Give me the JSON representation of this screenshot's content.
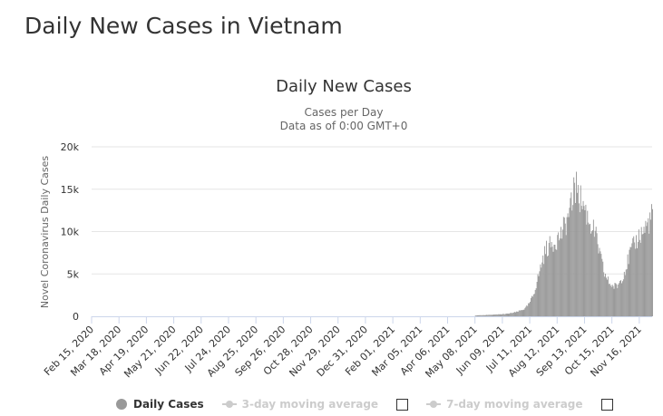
{
  "page": {
    "heading": "Daily New Cases in Vietnam"
  },
  "chart_data": {
    "type": "bar",
    "title": "Daily New Cases",
    "subtitle_line1": "Cases per Day",
    "subtitle_line2": "Data as of 0:00 GMT+0",
    "ylabel": "Novel Coronavirus Daily Cases",
    "xlabel": "",
    "ylim": [
      0,
      20000
    ],
    "y_ticks": [
      {
        "value": 0,
        "label": "0"
      },
      {
        "value": 5000,
        "label": "5k"
      },
      {
        "value": 10000,
        "label": "10k"
      },
      {
        "value": 15000,
        "label": "15k"
      },
      {
        "value": 20000,
        "label": "20k"
      }
    ],
    "x_range": [
      "2020-02-15",
      "2021-12-01"
    ],
    "x_ticks": [
      {
        "date": "2020-02-15",
        "label": "Feb 15, 2020"
      },
      {
        "date": "2020-03-18",
        "label": "Mar 18, 2020"
      },
      {
        "date": "2020-04-19",
        "label": "Apr 19, 2020"
      },
      {
        "date": "2020-05-21",
        "label": "May 21, 2020"
      },
      {
        "date": "2020-06-22",
        "label": "Jun 22, 2020"
      },
      {
        "date": "2020-07-24",
        "label": "Jul 24, 2020"
      },
      {
        "date": "2020-08-25",
        "label": "Aug 25, 2020"
      },
      {
        "date": "2020-09-26",
        "label": "Sep 26, 2020"
      },
      {
        "date": "2020-10-28",
        "label": "Oct 28, 2020"
      },
      {
        "date": "2020-11-29",
        "label": "Nov 29, 2020"
      },
      {
        "date": "2020-12-31",
        "label": "Dec 31, 2020"
      },
      {
        "date": "2021-02-01",
        "label": "Feb 01, 2021"
      },
      {
        "date": "2021-03-05",
        "label": "Mar 05, 2021"
      },
      {
        "date": "2021-04-06",
        "label": "Apr 06, 2021"
      },
      {
        "date": "2021-05-08",
        "label": "May 08, 2021"
      },
      {
        "date": "2021-06-09",
        "label": "Jun 09, 2021"
      },
      {
        "date": "2021-07-11",
        "label": "Jul 11, 2021"
      },
      {
        "date": "2021-08-12",
        "label": "Aug 12, 2021"
      },
      {
        "date": "2021-09-13",
        "label": "Sep 13, 2021"
      },
      {
        "date": "2021-10-15",
        "label": "Oct 15, 2021"
      },
      {
        "date": "2021-11-16",
        "label": "Nov 16, 2021"
      }
    ],
    "grid": true,
    "bar_color": "#999999",
    "series": [
      {
        "name": "Daily Cases",
        "points": [
          {
            "x": "2021-05-08",
            "y": 100
          },
          {
            "x": "2021-05-20",
            "y": 150
          },
          {
            "x": "2021-06-01",
            "y": 200
          },
          {
            "x": "2021-06-15",
            "y": 300
          },
          {
            "x": "2021-06-25",
            "y": 500
          },
          {
            "x": "2021-07-05",
            "y": 900
          },
          {
            "x": "2021-07-10",
            "y": 1500
          },
          {
            "x": "2021-07-15",
            "y": 2600
          },
          {
            "x": "2021-07-20",
            "y": 4500
          },
          {
            "x": "2021-07-25",
            "y": 6500
          },
          {
            "x": "2021-07-30",
            "y": 8000
          },
          {
            "x": "2021-08-05",
            "y": 8500
          },
          {
            "x": "2021-08-10",
            "y": 9000
          },
          {
            "x": "2021-08-15",
            "y": 9500
          },
          {
            "x": "2021-08-20",
            "y": 10500
          },
          {
            "x": "2021-08-25",
            "y": 12000
          },
          {
            "x": "2021-08-30",
            "y": 13500
          },
          {
            "x": "2021-09-03",
            "y": 15000
          },
          {
            "x": "2021-09-07",
            "y": 14000
          },
          {
            "x": "2021-09-12",
            "y": 13000
          },
          {
            "x": "2021-09-17",
            "y": 11500
          },
          {
            "x": "2021-09-22",
            "y": 10500
          },
          {
            "x": "2021-09-27",
            "y": 9000
          },
          {
            "x": "2021-10-01",
            "y": 7000
          },
          {
            "x": "2021-10-06",
            "y": 5000
          },
          {
            "x": "2021-10-11",
            "y": 4000
          },
          {
            "x": "2021-10-16",
            "y": 3500
          },
          {
            "x": "2021-10-21",
            "y": 3600
          },
          {
            "x": "2021-10-26",
            "y": 4500
          },
          {
            "x": "2021-10-31",
            "y": 5800
          },
          {
            "x": "2021-11-05",
            "y": 7500
          },
          {
            "x": "2021-11-10",
            "y": 8500
          },
          {
            "x": "2021-11-15",
            "y": 9500
          },
          {
            "x": "2021-11-20",
            "y": 10000
          },
          {
            "x": "2021-11-25",
            "y": 10800
          },
          {
            "x": "2021-12-01",
            "y": 12000
          }
        ],
        "peaks": [
          {
            "x": "2021-08-31",
            "y": 16400
          },
          {
            "x": "2021-09-05",
            "y": 15500
          }
        ]
      }
    ],
    "legend": {
      "placement": "bottom-center",
      "items": [
        {
          "label": "Daily Cases",
          "active": true
        },
        {
          "label": "3-day moving average",
          "active": false
        },
        {
          "label": "7-day moving average",
          "active": false
        }
      ]
    }
  },
  "colors": {
    "bar": "#999999",
    "grid": "#e6e6e6",
    "axis": "#ccd6eb",
    "text": "#333333",
    "legend_hidden": "#cccccc"
  }
}
